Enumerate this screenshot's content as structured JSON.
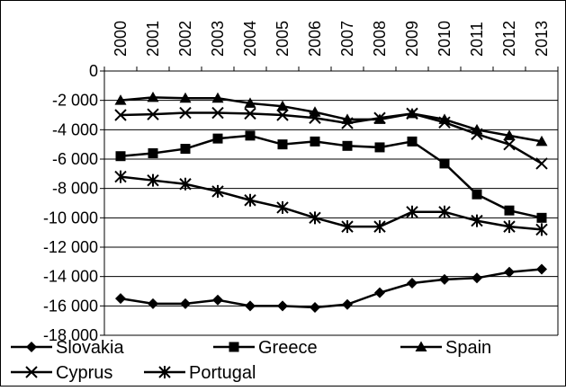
{
  "chart_data": {
    "type": "line",
    "title": "",
    "xlabel": "",
    "ylabel": "",
    "x": [
      "2000",
      "2001",
      "2002",
      "2003",
      "2004",
      "2005",
      "2006",
      "2007",
      "2008",
      "2009",
      "2010",
      "2011",
      "2012",
      "2013"
    ],
    "ylim": [
      -18000,
      0
    ],
    "yticks": [
      0,
      -2000,
      -4000,
      -6000,
      -8000,
      -10000,
      -12000,
      -14000,
      -16000,
      -18000
    ],
    "ytick_labels": [
      "0",
      "-2 000",
      "-4 000",
      "-6 000",
      "-8 000",
      "-10 000",
      "-12 000",
      "-14 000",
      "-16 000",
      "-18 000"
    ],
    "grid": "horizontal",
    "x_axis_position": "top",
    "legend_position": "bottom",
    "series": [
      {
        "name": "Slovakia",
        "marker": "diamond",
        "values": [
          -15500,
          -15850,
          -15850,
          -15600,
          -16000,
          -16000,
          -16100,
          -15900,
          -15100,
          -14450,
          -14200,
          -14100,
          -13700,
          -13500
        ]
      },
      {
        "name": "Greece",
        "marker": "square",
        "values": [
          -5800,
          -5600,
          -5300,
          -4600,
          -4400,
          -5000,
          -4800,
          -5100,
          -5200,
          -4800,
          -6300,
          -8400,
          -9500,
          -10000
        ]
      },
      {
        "name": "Spain",
        "marker": "triangle",
        "values": [
          -2000,
          -1800,
          -1850,
          -1850,
          -2200,
          -2400,
          -2800,
          -3300,
          -3300,
          -2900,
          -3300,
          -4000,
          -4400,
          -4800
        ]
      },
      {
        "name": "Cyprus",
        "marker": "x",
        "values": [
          -3000,
          -2950,
          -2850,
          -2850,
          -2900,
          -3000,
          -3200,
          -3550,
          -3200,
          -2900,
          -3500,
          -4300,
          -5000,
          -6300
        ]
      },
      {
        "name": "Portugal",
        "marker": "asterisk",
        "values": [
          -7200,
          -7450,
          -7700,
          -8200,
          -8800,
          -9300,
          -10000,
          -10600,
          -10600,
          -9600,
          -9600,
          -10200,
          -10600,
          -10800
        ]
      }
    ]
  }
}
